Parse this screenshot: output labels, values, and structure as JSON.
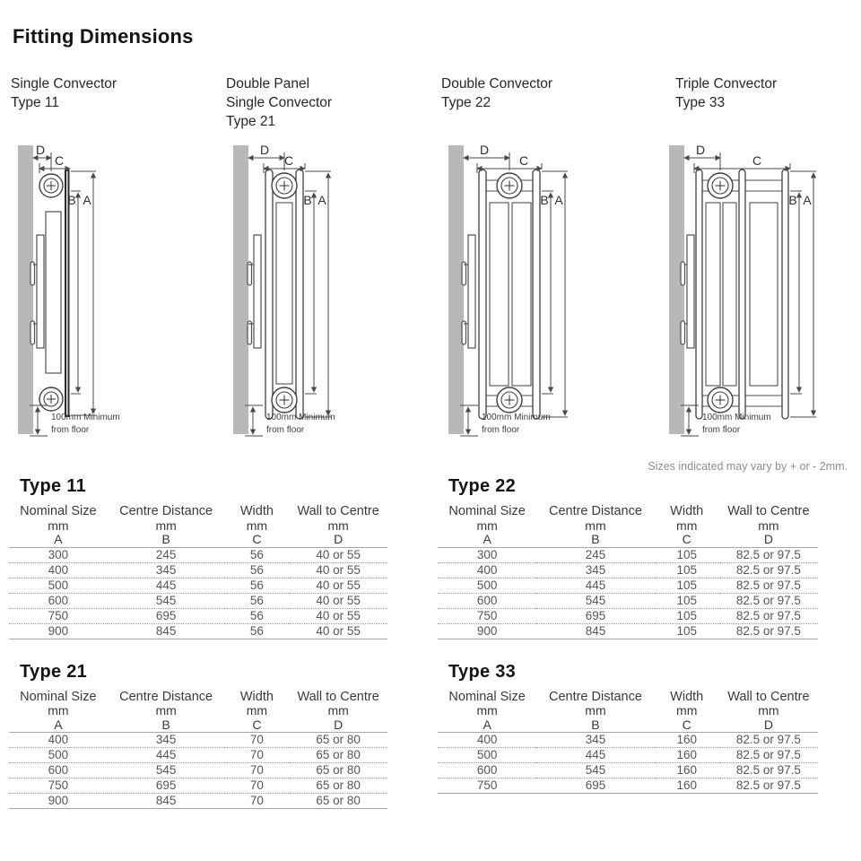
{
  "page": {
    "title": "Fitting Dimensions",
    "sizes_note": "Sizes indicated may vary by + or - 2mm."
  },
  "diagram_headers": [
    {
      "lines": [
        "Single Convector",
        "Type 11"
      ]
    },
    {
      "lines": [
        "Double Panel",
        "Single Convector",
        "Type 21"
      ]
    },
    {
      "lines": [
        "Double Convector",
        "Type 22"
      ]
    },
    {
      "lines": [
        "Triple Convector",
        "Type 33"
      ]
    }
  ],
  "diagram_labels": {
    "a": "A",
    "b": "B",
    "c": "C",
    "d": "D",
    "floor_line1": "100mm Minimum",
    "floor_line2": "from floor"
  },
  "tables": [
    {
      "title": "Type 11",
      "col_names": [
        "Nominal Size",
        "Centre Distance",
        "Width",
        "Wall to Centre"
      ],
      "col_units": [
        "mm",
        "mm",
        "mm",
        "mm"
      ],
      "col_letters": [
        "A",
        "B",
        "C",
        "D"
      ],
      "rows": [
        [
          "300",
          "245",
          "56",
          "40 or 55"
        ],
        [
          "400",
          "345",
          "56",
          "40 or 55"
        ],
        [
          "500",
          "445",
          "56",
          "40 or 55"
        ],
        [
          "600",
          "545",
          "56",
          "40 or 55"
        ],
        [
          "750",
          "695",
          "56",
          "40 or 55"
        ],
        [
          "900",
          "845",
          "56",
          "40 or 55"
        ]
      ]
    },
    {
      "title": "Type 22",
      "col_names": [
        "Nominal Size",
        "Centre Distance",
        "Width",
        "Wall to Centre"
      ],
      "col_units": [
        "mm",
        "mm",
        "mm",
        "mm"
      ],
      "col_letters": [
        "A",
        "B",
        "C",
        "D"
      ],
      "rows": [
        [
          "300",
          "245",
          "105",
          "82.5 or 97.5"
        ],
        [
          "400",
          "345",
          "105",
          "82.5 or 97.5"
        ],
        [
          "500",
          "445",
          "105",
          "82.5 or 97.5"
        ],
        [
          "600",
          "545",
          "105",
          "82.5 or 97.5"
        ],
        [
          "750",
          "695",
          "105",
          "82.5 or 97.5"
        ],
        [
          "900",
          "845",
          "105",
          "82.5 or 97.5"
        ]
      ]
    },
    {
      "title": "Type 21",
      "col_names": [
        "Nominal Size",
        "Centre Distance",
        "Width",
        "Wall to Centre"
      ],
      "col_units": [
        "mm",
        "mm",
        "mm",
        "mm"
      ],
      "col_letters": [
        "A",
        "B",
        "C",
        "D"
      ],
      "rows": [
        [
          "400",
          "345",
          "70",
          "65 or 80"
        ],
        [
          "500",
          "445",
          "70",
          "65 or 80"
        ],
        [
          "600",
          "545",
          "70",
          "65 or 80"
        ],
        [
          "750",
          "695",
          "70",
          "65 or 80"
        ],
        [
          "900",
          "845",
          "70",
          "65 or 80"
        ]
      ]
    },
    {
      "title": "Type 33",
      "col_names": [
        "Nominal Size",
        "Centre Distance",
        "Width",
        "Wall to Centre"
      ],
      "col_units": [
        "mm",
        "mm",
        "mm",
        "mm"
      ],
      "col_letters": [
        "A",
        "B",
        "C",
        "D"
      ],
      "rows": [
        [
          "400",
          "345",
          "160",
          "82.5 or 97.5"
        ],
        [
          "500",
          "445",
          "160",
          "82.5 or 97.5"
        ],
        [
          "600",
          "545",
          "160",
          "82.5 or 97.5"
        ],
        [
          "750",
          "695",
          "160",
          "82.5 or 97.5"
        ]
      ]
    }
  ],
  "colors": {
    "wall_gray": "#b8b8b8",
    "line": "#4a4a4a",
    "panel_dark": "#2b2b2b",
    "table_rule": "#a6a6a6",
    "body_text": "#565656",
    "note_gray": "#8d8d8d"
  }
}
